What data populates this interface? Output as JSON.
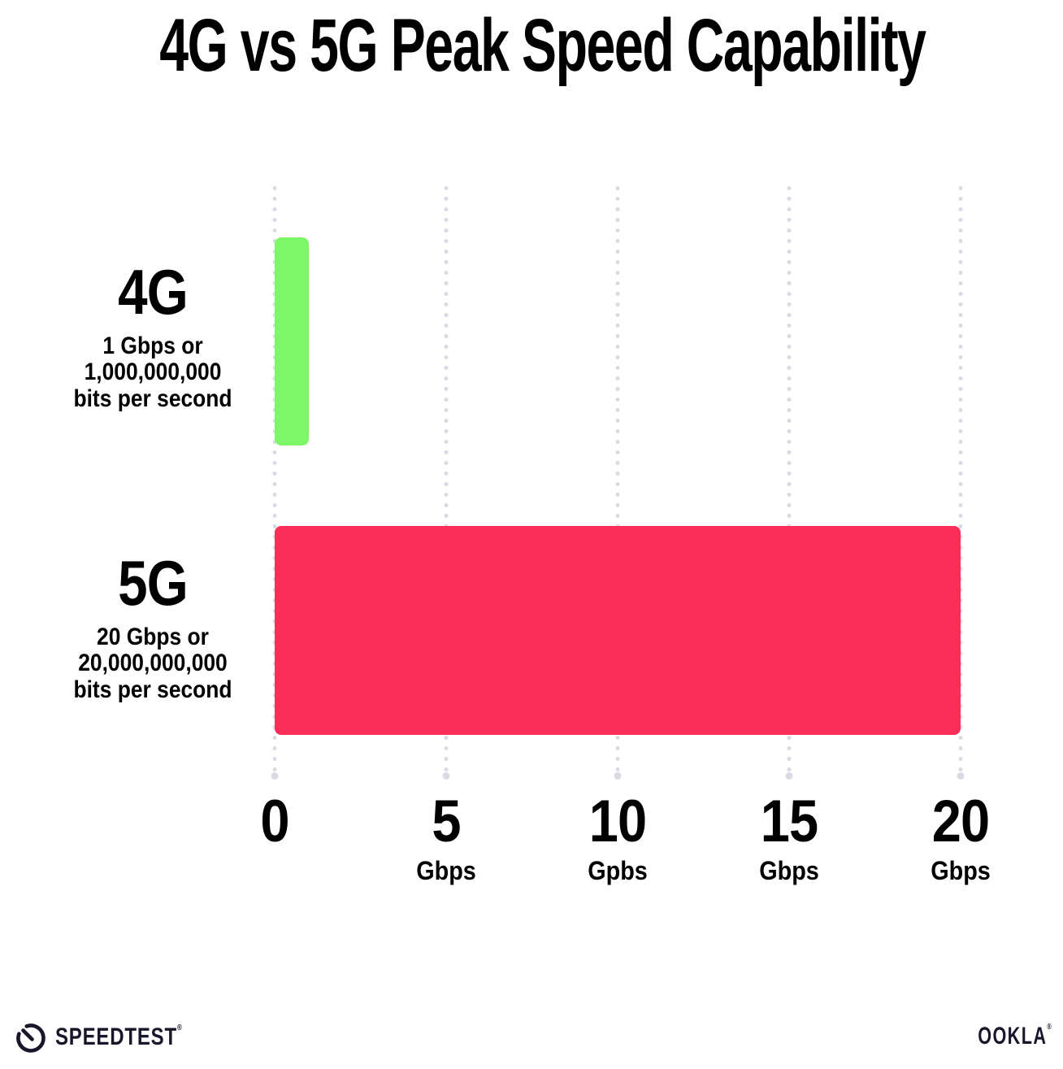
{
  "chart_data": {
    "type": "bar",
    "orientation": "horizontal",
    "title": "4G vs 5G Peak Speed Capability",
    "categories": [
      "4G",
      "5G"
    ],
    "values": [
      1,
      20
    ],
    "value_unit": "Gbps",
    "xlim": [
      0,
      20
    ],
    "xlabel": "Gbps",
    "ylabel": "",
    "grid": "vertical dotted gridlines at 0,5,10,15,20",
    "legend": "none",
    "x_ticks": [
      {
        "value": "0",
        "unit": ""
      },
      {
        "value": "5",
        "unit": "Gbps"
      },
      {
        "value": "10",
        "unit": "Gpbs"
      },
      {
        "value": "15",
        "unit": "Gbps"
      },
      {
        "value": "20",
        "unit": "Gbps"
      }
    ],
    "rows": [
      {
        "label": "4G",
        "sublabel_lines": [
          "1 Gbps or",
          "1,000,000,000",
          "bits per second"
        ],
        "value_gbps": 1,
        "color": "#7DF768"
      },
      {
        "label": "5G",
        "sublabel_lines": [
          "20 Gbps or",
          "20,000,000,000",
          "bits per second"
        ],
        "value_gbps": 20,
        "color": "#FC2D57"
      }
    ]
  },
  "colors": {
    "bar_4g": "#7DF768",
    "bar_5g": "#FC2D57",
    "grid_dots": "#D9DAE6",
    "text": "#000000",
    "logo": "#17162B",
    "background": "#FFFFFF"
  },
  "footer": {
    "speedtest_label": "SPEEDTEST",
    "speedtest_trademark": "®",
    "ookla_label": "OOKLA",
    "ookla_trademark": "®"
  }
}
